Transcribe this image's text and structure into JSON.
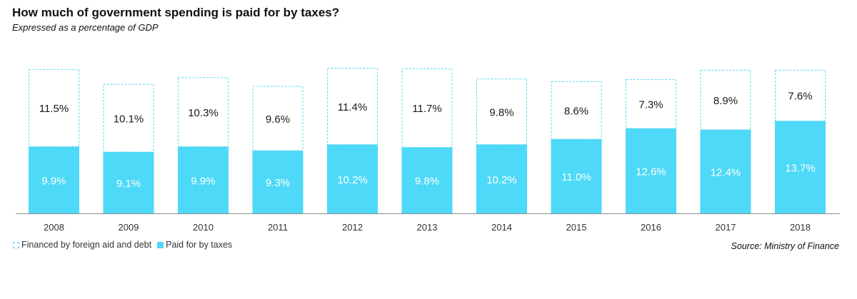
{
  "header": {
    "title": "How much of government spending is paid for by taxes?",
    "subtitle": "Expressed  as a  percentage  of  GDP"
  },
  "legend": {
    "financed_label": "Financed by foreign aid and debt",
    "taxes_label": "Paid for by taxes"
  },
  "source": "Source: Ministry of Finance",
  "colors": {
    "taxes": "#4dd9f7",
    "financed_border": "#5fd8ee",
    "axis": "#8c8c8c"
  },
  "chart_data": {
    "type": "bar",
    "stacked": true,
    "categories": [
      "2008",
      "2009",
      "2010",
      "2011",
      "2012",
      "2013",
      "2014",
      "2015",
      "2016",
      "2017",
      "2018"
    ],
    "series": [
      {
        "name": "Paid for by taxes",
        "values": [
          9.9,
          9.1,
          9.9,
          9.3,
          10.2,
          9.8,
          10.2,
          11.0,
          12.6,
          12.4,
          13.7
        ],
        "labels": [
          "9.9%",
          "9.1%",
          "9.9%",
          "9.3%",
          "10.2%",
          "9.8%",
          "10.2%",
          "11.0%",
          "12.6%",
          "12.4%",
          "13.7%"
        ]
      },
      {
        "name": "Financed by foreign aid and debt",
        "values": [
          11.5,
          10.1,
          10.3,
          9.6,
          11.4,
          11.7,
          9.8,
          8.6,
          7.3,
          8.9,
          7.6
        ],
        "labels": [
          "11.5%",
          "10.1%",
          "10.3%",
          "9.6%",
          "11.4%",
          "11.7%",
          "9.8%",
          "8.6%",
          "7.3%",
          "8.9%",
          "7.6%"
        ]
      }
    ],
    "ylim": [
      0,
      21.6
    ],
    "grid": false,
    "legend_position": "bottom-left"
  }
}
